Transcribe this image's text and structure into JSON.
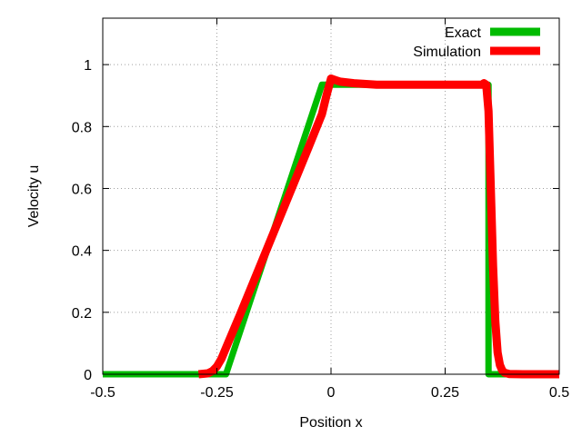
{
  "chart_data": {
    "type": "line",
    "title": "",
    "xlabel": "Position x",
    "ylabel": "Velocity u",
    "xlim": [
      -0.5,
      0.5
    ],
    "ylim": [
      0,
      1.15
    ],
    "grid": true,
    "legend_position": "top-right",
    "x_ticks": [
      -0.5,
      -0.25,
      0,
      0.25,
      0.5
    ],
    "x_tick_labels": [
      "-0.5",
      "-0.25",
      "0",
      "0.25",
      "0.5"
    ],
    "y_ticks": [
      0,
      0.2,
      0.4,
      0.6,
      0.8,
      1
    ],
    "y_tick_labels": [
      "0",
      "0.2",
      "0.4",
      "0.6",
      "0.8",
      "1"
    ],
    "series": [
      {
        "name": "Exact",
        "color": "#00bb00",
        "x": [
          -0.5,
          -0.23,
          -0.02,
          0.345,
          0.345,
          0.5
        ],
        "y": [
          0,
          0,
          0.935,
          0.935,
          0,
          0
        ]
      },
      {
        "name": "Simulation",
        "color": "#ff0000",
        "x": [
          -0.29,
          -0.27,
          -0.26,
          -0.25,
          -0.24,
          -0.23,
          -0.2,
          -0.15,
          -0.1,
          -0.05,
          -0.02,
          -0.01,
          0.0,
          0.01,
          0.02,
          0.05,
          0.1,
          0.15,
          0.2,
          0.25,
          0.3,
          0.33,
          0.335,
          0.34,
          0.345,
          0.35,
          0.355,
          0.36,
          0.365,
          0.37,
          0.375,
          0.38,
          0.39,
          0.42,
          0.5
        ],
        "y": [
          0,
          0.003,
          0.01,
          0.025,
          0.05,
          0.085,
          0.19,
          0.37,
          0.55,
          0.73,
          0.84,
          0.9,
          0.955,
          0.95,
          0.945,
          0.94,
          0.935,
          0.935,
          0.935,
          0.935,
          0.935,
          0.935,
          0.94,
          0.935,
          0.85,
          0.6,
          0.35,
          0.17,
          0.07,
          0.03,
          0.012,
          0.005,
          0.001,
          0,
          0
        ]
      }
    ]
  }
}
